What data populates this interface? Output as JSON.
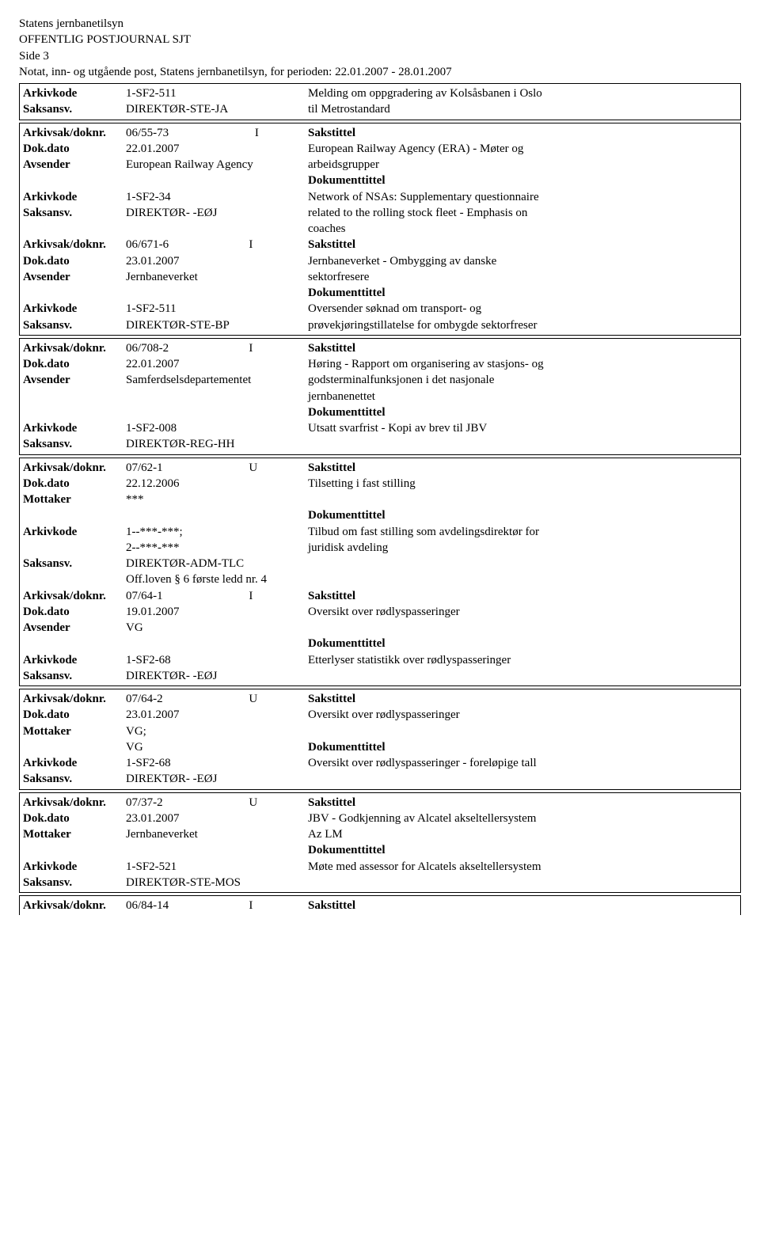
{
  "header": {
    "org": "Statens jernbanetilsyn",
    "title": "OFFENTLIG POSTJOURNAL SJT",
    "page": "Side 3",
    "period": "Notat, inn- og utgående post, Statens jernbanetilsyn, for perioden: 22.01.2007 - 28.01.2007"
  },
  "labels": {
    "arkivkode": "Arkivkode",
    "saksansv": "Saksansv.",
    "arkivsakdoknr": "Arkivsak/doknr.",
    "dokdato": "Dok.dato",
    "avsender": "Avsender",
    "mottaker": "Mottaker",
    "sakstittel": "Sakstittel",
    "dokumenttittel": "Dokumenttittel"
  },
  "sec0": {
    "arkivkode": "1-SF2-511",
    "saksansv": "DIREKTØR-STE-JA",
    "right1": "Melding om oppgradering av Kolsåsbanen i Oslo",
    "right2": "til Metrostandard"
  },
  "sec1": {
    "doknr": "06/55-73",
    "dir": "I",
    "dato": "22.01.2007",
    "avsender": "European Railway Agency",
    "arkivkode": "1-SF2-34",
    "saksansv": "DIREKTØR- -EØJ",
    "r_dato": "European Railway Agency (ERA) - Møter og",
    "r_avs": "arbeidsgrupper",
    "r_ak": "Network of NSAs: Supplementary questionnaire",
    "r_sa1": "related to the rolling stock fleet - Emphasis on",
    "r_sa2": "coaches"
  },
  "sec2": {
    "doknr": "06/671-6",
    "dir": "I",
    "dato": "23.01.2007",
    "avsender": "Jernbaneverket",
    "arkivkode": "1-SF2-511",
    "saksansv": "DIREKTØR-STE-BP",
    "r_dato": "Jernbaneverket - Ombygging av danske",
    "r_avs": "sektorfresere",
    "r_ak": "Oversender søknad om transport- og",
    "r_sa": "prøvekjøringstillatelse for ombygde sektorfreser"
  },
  "sec3": {
    "doknr": "06/708-2",
    "dir": "I",
    "dato": "22.01.2007",
    "avsender": "Samferdselsdepartementet",
    "arkivkode": "1-SF2-008",
    "saksansv": "DIREKTØR-REG-HH",
    "r_dato": "Høring - Rapport om organisering av stasjons- og",
    "r_avs1": "godsterminalfunksjonen i det nasjonale",
    "r_avs2": "jernbanenettet",
    "r_ak": "Utsatt svarfrist - Kopi av brev til JBV"
  },
  "sec4": {
    "doknr": "07/62-1",
    "dir": "U",
    "dato": "22.12.2006",
    "mottaker": "***",
    "arkivkode1": "1--***-***;",
    "arkivkode2": "2--***-***",
    "saksansv": "DIREKTØR-ADM-TLC",
    "off": "Off.loven § 6 første ledd nr. 4",
    "r_dato": "Tilsetting i fast stilling",
    "r_ak1": "Tilbud om fast stilling som avdelingsdirektør for",
    "r_ak2": "juridisk avdeling"
  },
  "sec5": {
    "doknr": "07/64-1",
    "dir": "I",
    "dato": "19.01.2007",
    "avsender": "VG",
    "arkivkode": "1-SF2-68",
    "saksansv": "DIREKTØR- -EØJ",
    "r_dato": "Oversikt over rødlyspasseringer",
    "r_ak": "Etterlyser statistikk over rødlyspasseringer"
  },
  "sec6": {
    "doknr": "07/64-2",
    "dir": "U",
    "dato": "23.01.2007",
    "mottaker1": "VG;",
    "mottaker2": "VG",
    "arkivkode": "1-SF2-68",
    "saksansv": "DIREKTØR- -EØJ",
    "r_dato": "Oversikt over rødlyspasseringer",
    "r_ak": "Oversikt over rødlyspasseringer - foreløpige tall"
  },
  "sec7": {
    "doknr": "07/37-2",
    "dir": "U",
    "dato": "23.01.2007",
    "mottaker": "Jernbaneverket",
    "arkivkode": "1-SF2-521",
    "saksansv": "DIREKTØR-STE-MOS",
    "r_dato": "JBV - Godkjenning av Alcatel akseltellersystem",
    "r_mot": "Az LM",
    "r_ak": "Møte med assessor for Alcatels akseltellersystem"
  },
  "sec8": {
    "doknr": "06/84-14",
    "dir": "I"
  }
}
